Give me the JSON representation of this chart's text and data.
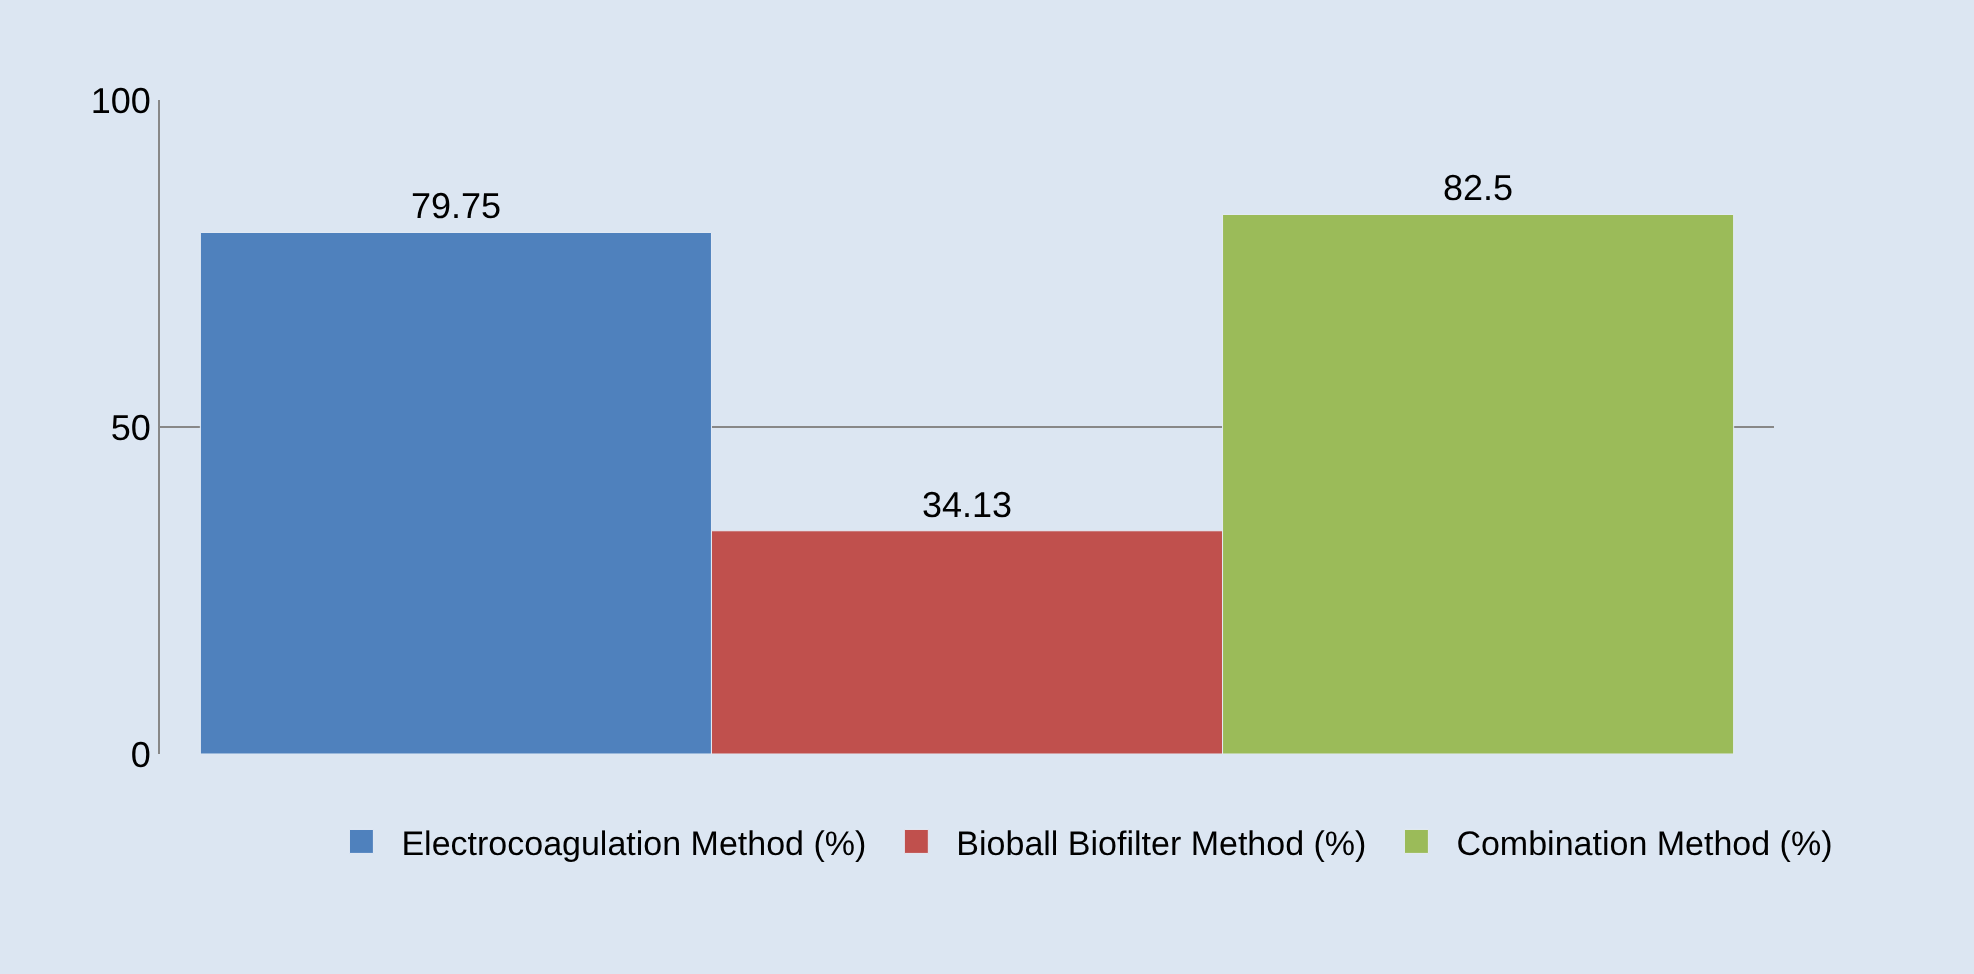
{
  "chart_data": {
    "type": "bar",
    "categories": [
      null
    ],
    "series": [
      {
        "name": "Electrocoagulation Method (%)",
        "color": "#4f81bd",
        "values": [
          79.75
        ]
      },
      {
        "name": "Bioball Biofilter Method (%)",
        "color": "#c0504d",
        "values": [
          34.13
        ]
      },
      {
        "name": "Combination Method (%)",
        "color": "#9bbb59",
        "values": [
          82.5
        ]
      }
    ],
    "ylim": [
      0,
      100
    ],
    "yticks": [
      0,
      50,
      100
    ],
    "grid": "y",
    "legend": "bottom",
    "data_labels": true
  }
}
